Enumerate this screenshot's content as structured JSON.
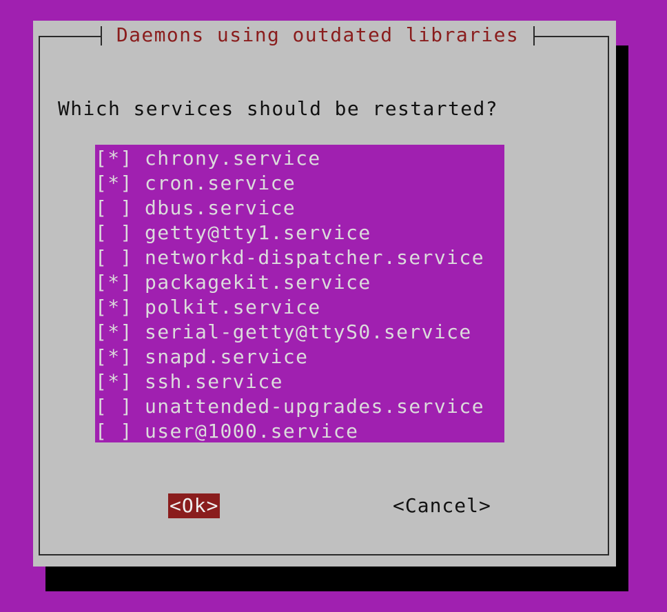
{
  "dialog": {
    "title": "Daemons using outdated libraries",
    "question": "Which services should be restarted?",
    "items": [
      {
        "mark": "[*]",
        "label": "chrony.service"
      },
      {
        "mark": "[*]",
        "label": "cron.service"
      },
      {
        "mark": "[ ]",
        "label": "dbus.service"
      },
      {
        "mark": "[ ]",
        "label": "getty@tty1.service"
      },
      {
        "mark": "[ ]",
        "label": "networkd-dispatcher.service"
      },
      {
        "mark": "[*]",
        "label": "packagekit.service"
      },
      {
        "mark": "[*]",
        "label": "polkit.service"
      },
      {
        "mark": "[*]",
        "label": "serial-getty@ttyS0.service"
      },
      {
        "mark": "[*]",
        "label": "snapd.service"
      },
      {
        "mark": "[*]",
        "label": "ssh.service"
      },
      {
        "mark": "[ ]",
        "label": "unattended-upgrades.service"
      },
      {
        "mark": "[ ]",
        "label": "user@1000.service"
      }
    ],
    "ok_label": "<Ok>",
    "cancel_label": "<Cancel>"
  },
  "colors": {
    "background": "#a020b0",
    "dialog": "#c0c0c0",
    "title": "#8a1d1d",
    "selected_button": "#8a1d1d"
  }
}
